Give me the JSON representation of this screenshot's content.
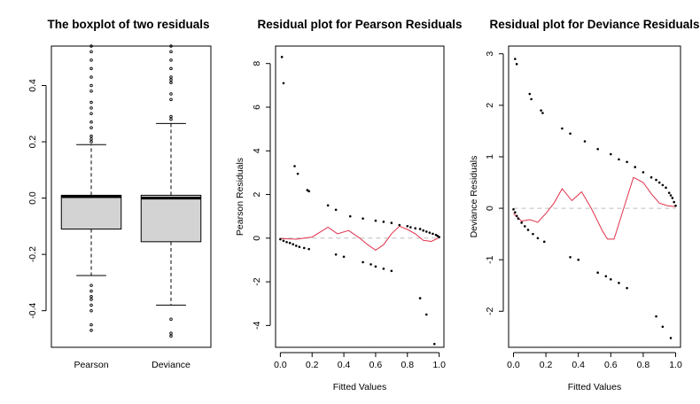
{
  "chart_data": [
    {
      "type": "boxplot",
      "title": "The boxplot of two residuals",
      "xlabel": "",
      "ylabel": "",
      "ylim": [
        -0.53,
        0.54
      ],
      "yticks": [
        -0.4,
        -0.2,
        0.0,
        0.2,
        0.4
      ],
      "categories": [
        "Pearson",
        "Deviance"
      ],
      "boxes": [
        {
          "name": "Pearson",
          "whisker_low": -0.275,
          "q1": -0.11,
          "median": 0.005,
          "q3": 0.01,
          "whisker_high": 0.19,
          "outliers": [
            0.21,
            0.2,
            0.22,
            0.25,
            0.27,
            0.3,
            0.32,
            0.34,
            0.38,
            0.4,
            0.43,
            0.46,
            0.49,
            0.52,
            0.54,
            -0.31,
            -0.33,
            -0.35,
            -0.36,
            -0.38,
            -0.4,
            -0.45,
            -0.47
          ]
        },
        {
          "name": "Deviance",
          "whisker_low": -0.38,
          "q1": -0.155,
          "median": 0.0,
          "q3": 0.01,
          "whisker_high": 0.265,
          "outliers": [
            0.28,
            0.29,
            0.35,
            0.37,
            0.41,
            0.42,
            0.43,
            0.46,
            0.49,
            0.52,
            0.54,
            -0.43,
            -0.48,
            -0.49
          ]
        }
      ]
    },
    {
      "type": "scatter",
      "title": "Residual plot for Pearson Residuals",
      "xlabel": "Fitted Values",
      "ylabel": "Pearson Residuals",
      "xlim": [
        -0.03,
        1.03
      ],
      "ylim": [
        -5.0,
        8.8
      ],
      "xticks": [
        0.0,
        0.2,
        0.4,
        0.6,
        0.8,
        1.0
      ],
      "yticks": [
        -4,
        -2,
        0,
        2,
        4,
        6,
        8
      ],
      "reference_line": 0,
      "points": [
        [
          0.01,
          8.3
        ],
        [
          0.02,
          7.1
        ],
        [
          0.09,
          3.3
        ],
        [
          0.11,
          2.95
        ],
        [
          0.17,
          2.2
        ],
        [
          0.18,
          2.15
        ],
        [
          0.3,
          1.5
        ],
        [
          0.35,
          1.3
        ],
        [
          0.44,
          1.0
        ],
        [
          0.52,
          0.9
        ],
        [
          0.6,
          0.8
        ],
        [
          0.65,
          0.75
        ],
        [
          0.7,
          0.7
        ],
        [
          0.75,
          0.6
        ],
        [
          0.8,
          0.55
        ],
        [
          0.82,
          0.5
        ],
        [
          0.85,
          0.45
        ],
        [
          0.88,
          0.42
        ],
        [
          0.9,
          0.35
        ],
        [
          0.92,
          0.3
        ],
        [
          0.94,
          0.25
        ],
        [
          0.96,
          0.2
        ],
        [
          0.98,
          0.15
        ],
        [
          0.99,
          0.1
        ],
        [
          1.0,
          0.05
        ],
        [
          0.0,
          -0.05
        ],
        [
          0.02,
          -0.12
        ],
        [
          0.04,
          -0.18
        ],
        [
          0.06,
          -0.22
        ],
        [
          0.08,
          -0.28
        ],
        [
          0.1,
          -0.35
        ],
        [
          0.12,
          -0.4
        ],
        [
          0.15,
          -0.45
        ],
        [
          0.18,
          -0.5
        ],
        [
          0.35,
          -0.75
        ],
        [
          0.4,
          -0.85
        ],
        [
          0.52,
          -1.1
        ],
        [
          0.57,
          -1.2
        ],
        [
          0.6,
          -1.3
        ],
        [
          0.65,
          -1.4
        ],
        [
          0.7,
          -1.5
        ],
        [
          0.88,
          -2.75
        ],
        [
          0.92,
          -3.5
        ],
        [
          0.97,
          -4.85
        ]
      ],
      "smooth": [
        [
          0.0,
          -0.02
        ],
        [
          0.1,
          -0.05
        ],
        [
          0.2,
          0.05
        ],
        [
          0.3,
          0.5
        ],
        [
          0.36,
          0.2
        ],
        [
          0.43,
          0.35
        ],
        [
          0.5,
          0.0
        ],
        [
          0.55,
          -0.3
        ],
        [
          0.6,
          -0.55
        ],
        [
          0.65,
          -0.3
        ],
        [
          0.7,
          0.2
        ],
        [
          0.75,
          0.55
        ],
        [
          0.8,
          0.4
        ],
        [
          0.85,
          0.2
        ],
        [
          0.9,
          -0.1
        ],
        [
          0.95,
          -0.15
        ],
        [
          1.0,
          0.02
        ]
      ],
      "colors": {
        "points": "#000000",
        "smooth": "#e0314a",
        "reference": "#bdbdbd"
      }
    },
    {
      "type": "scatter",
      "title": "Residual plot for Deviance Residuals",
      "xlabel": "Fitted Values",
      "ylabel": "Deviance Residuals",
      "xlim": [
        -0.03,
        1.03
      ],
      "ylim": [
        -2.7,
        3.15
      ],
      "xticks": [
        0.0,
        0.2,
        0.4,
        0.6,
        0.8,
        1.0
      ],
      "yticks": [
        -2,
        -1,
        0,
        1,
        2,
        3
      ],
      "reference_line": 0,
      "points": [
        [
          0.01,
          2.9
        ],
        [
          0.02,
          2.8
        ],
        [
          0.1,
          2.22
        ],
        [
          0.11,
          2.12
        ],
        [
          0.17,
          1.9
        ],
        [
          0.18,
          1.85
        ],
        [
          0.3,
          1.55
        ],
        [
          0.35,
          1.45
        ],
        [
          0.44,
          1.3
        ],
        [
          0.52,
          1.15
        ],
        [
          0.6,
          1.05
        ],
        [
          0.65,
          0.95
        ],
        [
          0.7,
          0.9
        ],
        [
          0.75,
          0.8
        ],
        [
          0.8,
          0.7
        ],
        [
          0.85,
          0.6
        ],
        [
          0.88,
          0.55
        ],
        [
          0.9,
          0.5
        ],
        [
          0.92,
          0.45
        ],
        [
          0.94,
          0.4
        ],
        [
          0.96,
          0.3
        ],
        [
          0.97,
          0.25
        ],
        [
          0.98,
          0.2
        ],
        [
          0.99,
          0.12
        ],
        [
          1.0,
          0.05
        ],
        [
          0.0,
          -0.02
        ],
        [
          0.01,
          -0.08
        ],
        [
          0.02,
          -0.15
        ],
        [
          0.03,
          -0.2
        ],
        [
          0.05,
          -0.28
        ],
        [
          0.07,
          -0.35
        ],
        [
          0.09,
          -0.42
        ],
        [
          0.12,
          -0.5
        ],
        [
          0.15,
          -0.58
        ],
        [
          0.19,
          -0.65
        ],
        [
          0.35,
          -0.95
        ],
        [
          0.4,
          -1.0
        ],
        [
          0.52,
          -1.25
        ],
        [
          0.57,
          -1.32
        ],
        [
          0.6,
          -1.38
        ],
        [
          0.65,
          -1.45
        ],
        [
          0.7,
          -1.55
        ],
        [
          0.88,
          -2.1
        ],
        [
          0.92,
          -2.3
        ],
        [
          0.97,
          -2.52
        ]
      ],
      "smooth": [
        [
          0.0,
          -0.1
        ],
        [
          0.05,
          -0.25
        ],
        [
          0.1,
          -0.22
        ],
        [
          0.15,
          -0.27
        ],
        [
          0.2,
          -0.1
        ],
        [
          0.25,
          0.1
        ],
        [
          0.3,
          0.38
        ],
        [
          0.36,
          0.15
        ],
        [
          0.42,
          0.32
        ],
        [
          0.48,
          0.0
        ],
        [
          0.55,
          -0.45
        ],
        [
          0.58,
          -0.6
        ],
        [
          0.62,
          -0.6
        ],
        [
          0.68,
          0.0
        ],
        [
          0.74,
          0.6
        ],
        [
          0.8,
          0.5
        ],
        [
          0.85,
          0.28
        ],
        [
          0.9,
          0.1
        ],
        [
          0.95,
          0.05
        ],
        [
          1.0,
          0.03
        ]
      ],
      "colors": {
        "points": "#000000",
        "smooth": "#e0314a",
        "reference": "#bdbdbd"
      }
    }
  ]
}
